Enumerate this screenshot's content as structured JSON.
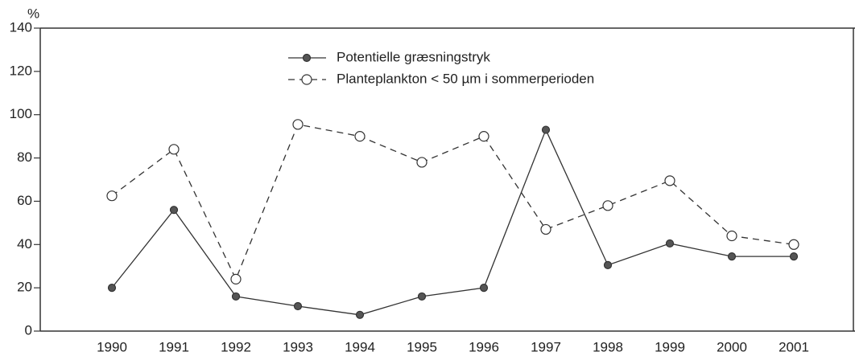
{
  "chart_data": {
    "type": "line",
    "ylabel": "%",
    "categories": [
      "1990",
      "1991",
      "1992",
      "1993",
      "1994",
      "1995",
      "1996",
      "1997",
      "1998",
      "1999",
      "2000",
      "2001"
    ],
    "series": [
      {
        "name": "Potentielle græsningstryk",
        "color": "#333333",
        "linestyle": "solid",
        "marker": "filled",
        "values": [
          20,
          56,
          16,
          11.5,
          7.5,
          16,
          20,
          93,
          30.5,
          40.5,
          34.5,
          34.5
        ]
      },
      {
        "name": "Planteplankton < 50 µm i sommerperioden",
        "color": "#333333",
        "linestyle": "dashed",
        "marker": "open",
        "values": [
          62.5,
          84,
          24,
          95.5,
          90,
          78,
          90,
          47,
          58,
          69.5,
          44,
          40
        ]
      }
    ],
    "ylim": [
      0,
      140
    ],
    "yticks": [
      0,
      20,
      40,
      60,
      80,
      100,
      120,
      140
    ],
    "grid": false
  }
}
